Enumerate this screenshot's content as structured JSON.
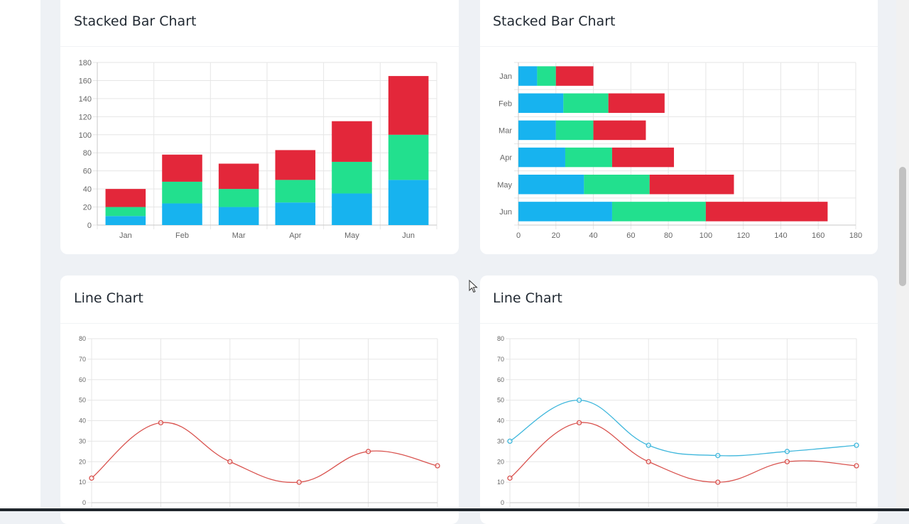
{
  "cards": [
    {
      "title": "Stacked Bar Chart"
    },
    {
      "title": "Stacked Bar Chart"
    },
    {
      "title": "Line Chart"
    },
    {
      "title": "Line Chart"
    }
  ],
  "chart_data": [
    {
      "type": "bar",
      "orientation": "vertical",
      "stacked": true,
      "title": "Stacked Bar Chart",
      "categories": [
        "Jan",
        "Feb",
        "Mar",
        "Apr",
        "May",
        "Jun"
      ],
      "series": [
        {
          "color": "#17b3ef",
          "values": [
            10,
            24,
            20,
            25,
            35,
            50
          ]
        },
        {
          "color": "#22e08e",
          "values": [
            10,
            24,
            20,
            25,
            35,
            50
          ]
        },
        {
          "color": "#e3273a",
          "values": [
            20,
            30,
            28,
            33,
            45,
            65
          ]
        }
      ],
      "ylim": [
        0,
        180
      ],
      "yticks": [
        0,
        20,
        40,
        60,
        80,
        100,
        120,
        140,
        160,
        180
      ],
      "grid": true,
      "legend": "none"
    },
    {
      "type": "bar",
      "orientation": "horizontal",
      "stacked": true,
      "title": "Stacked Bar Chart",
      "categories": [
        "Jan",
        "Feb",
        "Mar",
        "Apr",
        "May",
        "Jun"
      ],
      "series": [
        {
          "color": "#17b3ef",
          "values": [
            10,
            24,
            20,
            25,
            35,
            50
          ]
        },
        {
          "color": "#22e08e",
          "values": [
            10,
            24,
            20,
            25,
            35,
            50
          ]
        },
        {
          "color": "#e3273a",
          "values": [
            20,
            30,
            28,
            33,
            45,
            65
          ]
        }
      ],
      "xlim": [
        0,
        180
      ],
      "xticks": [
        0,
        20,
        40,
        60,
        80,
        100,
        120,
        140,
        160,
        180
      ],
      "grid": true,
      "legend": "none"
    },
    {
      "type": "line",
      "title": "Line Chart",
      "x": [
        0,
        1,
        2,
        3,
        4,
        5
      ],
      "series": [
        {
          "color": "#d9534f",
          "values": [
            12,
            39,
            20,
            10,
            25,
            18
          ]
        }
      ],
      "ylim": [
        0,
        80
      ],
      "yticks": [
        0,
        10,
        20,
        30,
        40,
        50,
        60,
        70,
        80
      ],
      "curve": "smooth",
      "grid": true,
      "legend": "none"
    },
    {
      "type": "line",
      "title": "Line Chart",
      "x": [
        0,
        1,
        2,
        3,
        4,
        5
      ],
      "series": [
        {
          "color": "#3fb7dc",
          "values": [
            30,
            50,
            28,
            23,
            25,
            28
          ]
        },
        {
          "color": "#d9534f",
          "values": [
            12,
            39,
            20,
            10,
            20,
            18
          ]
        }
      ],
      "ylim": [
        0,
        80
      ],
      "yticks": [
        0,
        10,
        20,
        30,
        40,
        50,
        60,
        70,
        80
      ],
      "curve": "smooth",
      "grid": true,
      "legend": "none"
    }
  ]
}
